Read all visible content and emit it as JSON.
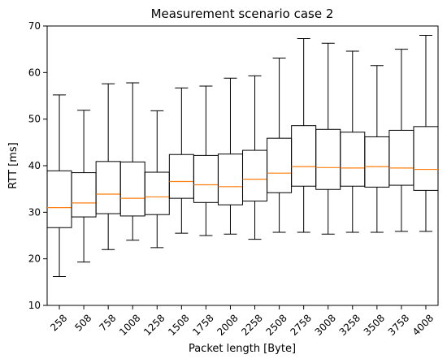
{
  "chart_data": {
    "type": "box",
    "title": "Measurement scenario case 2",
    "xlabel": "Packet length [Byte]",
    "ylabel": "RTT [ms]",
    "ylim": [
      10,
      70
    ],
    "yticks": [
      10,
      20,
      30,
      40,
      50,
      60,
      70
    ],
    "grid": false,
    "categories": [
      "258",
      "508",
      "758",
      "1008",
      "1258",
      "1508",
      "1758",
      "2008",
      "2258",
      "2508",
      "2758",
      "3008",
      "3258",
      "3508",
      "3758",
      "4008"
    ],
    "boxes": [
      {
        "min": 16.2,
        "q1": 26.7,
        "median": 31.0,
        "q3": 38.9,
        "max": 55.2
      },
      {
        "min": 19.3,
        "q1": 29.0,
        "median": 32.0,
        "q3": 38.5,
        "max": 51.9
      },
      {
        "min": 22.0,
        "q1": 29.7,
        "median": 33.9,
        "q3": 40.9,
        "max": 57.6
      },
      {
        "min": 24.0,
        "q1": 29.2,
        "median": 33.0,
        "q3": 40.8,
        "max": 57.8
      },
      {
        "min": 22.4,
        "q1": 29.5,
        "median": 33.3,
        "q3": 38.6,
        "max": 51.8
      },
      {
        "min": 25.5,
        "q1": 33.0,
        "median": 36.6,
        "q3": 42.4,
        "max": 56.7
      },
      {
        "min": 25.0,
        "q1": 32.1,
        "median": 35.9,
        "q3": 42.2,
        "max": 57.1
      },
      {
        "min": 25.3,
        "q1": 31.6,
        "median": 35.5,
        "q3": 42.5,
        "max": 58.8
      },
      {
        "min": 24.2,
        "q1": 32.4,
        "median": 37.1,
        "q3": 43.3,
        "max": 59.3
      },
      {
        "min": 25.7,
        "q1": 34.2,
        "median": 38.4,
        "q3": 45.9,
        "max": 63.1
      },
      {
        "min": 25.7,
        "q1": 35.6,
        "median": 39.8,
        "q3": 48.6,
        "max": 67.3
      },
      {
        "min": 25.3,
        "q1": 34.9,
        "median": 39.6,
        "q3": 47.8,
        "max": 66.3
      },
      {
        "min": 25.7,
        "q1": 35.6,
        "median": 39.5,
        "q3": 47.2,
        "max": 64.6
      },
      {
        "min": 25.7,
        "q1": 35.4,
        "median": 39.8,
        "q3": 46.2,
        "max": 61.5
      },
      {
        "min": 25.9,
        "q1": 35.8,
        "median": 39.5,
        "q3": 47.6,
        "max": 65.0
      },
      {
        "min": 25.9,
        "q1": 34.7,
        "median": 39.2,
        "q3": 48.4,
        "max": 68.0
      }
    ],
    "colors": {
      "box": "#000000",
      "median": "#ff7f0e"
    }
  }
}
